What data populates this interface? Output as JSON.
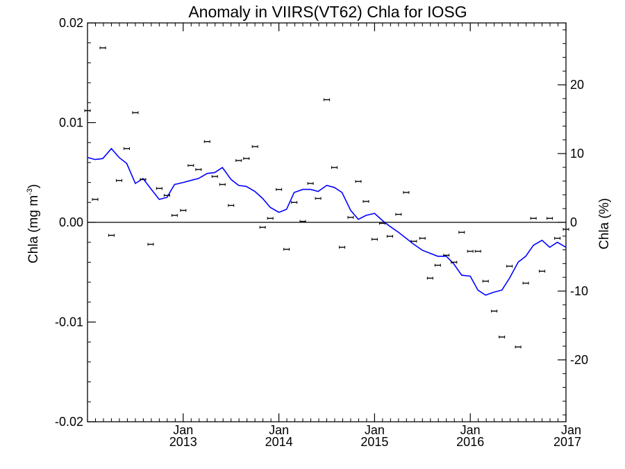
{
  "chart_data": {
    "type": "scatter",
    "title": "Anomaly in VIIRS(VT62) Chla for IOSG",
    "ylabel_left": {
      "base": "Chla (mg m",
      "superscript": "-3",
      "close": ")"
    },
    "ylabel_right": "Chla (%)",
    "xlim": [
      2012.0,
      2017.0
    ],
    "ylim_left": [
      -0.02,
      0.02
    ],
    "ylim_right": [
      -29,
      29
    ],
    "x_ticks": [
      {
        "x": 2013.0,
        "month": "Jan",
        "year": "2013"
      },
      {
        "x": 2014.0,
        "month": "Jan",
        "year": "2014"
      },
      {
        "x": 2015.0,
        "month": "Jan",
        "year": "2015"
      },
      {
        "x": 2016.0,
        "month": "Jan",
        "year": "2016"
      },
      {
        "x": 2017.0,
        "month": "Jan",
        "year": "2017"
      }
    ],
    "y_ticks_left": [
      {
        "value": 0.02,
        "label": "0.02"
      },
      {
        "value": 0.01,
        "label": "0.01"
      },
      {
        "value": 0.0,
        "label": "0.00"
      },
      {
        "value": -0.01,
        "label": "-0.01"
      },
      {
        "value": -0.02,
        "label": "-0.02"
      }
    ],
    "y_ticks_right": [
      {
        "value": 20,
        "label": "20"
      },
      {
        "value": 10,
        "label": "10"
      },
      {
        "value": 0,
        "label": "0"
      },
      {
        "value": -10,
        "label": "-10"
      },
      {
        "value": -20,
        "label": "-20"
      }
    ],
    "zero_line": true,
    "colors": {
      "points": "#000000",
      "line": "#0000ff",
      "axes": "#000000"
    },
    "series": [
      {
        "kind": "points",
        "x": [
          2012.0,
          2012.08,
          2012.16,
          2012.25,
          2012.33,
          2012.41,
          2012.5,
          2012.58,
          2012.66,
          2012.75,
          2012.83,
          2012.91,
          2013.0,
          2013.08,
          2013.16,
          2013.25,
          2013.33,
          2013.41,
          2013.5,
          2013.58,
          2013.66,
          2013.75,
          2013.83,
          2013.91,
          2014.0,
          2014.08,
          2014.16,
          2014.25,
          2014.33,
          2014.41,
          2014.5,
          2014.58,
          2014.66,
          2014.75,
          2014.83,
          2014.91,
          2015.0,
          2015.08,
          2015.16,
          2015.25,
          2015.33,
          2015.41,
          2015.5,
          2015.58,
          2015.66,
          2015.75,
          2015.83,
          2015.91,
          2016.0,
          2016.08,
          2016.16,
          2016.25,
          2016.33,
          2016.41,
          2016.5,
          2016.58,
          2016.66,
          2016.75,
          2016.83,
          2016.91,
          2017.0
        ],
        "y": [
          0.0112,
          0.0023,
          0.0175,
          -0.0013,
          0.0042,
          0.0074,
          0.011,
          0.0043,
          -0.0022,
          0.0034,
          0.0027,
          0.0007,
          0.0012,
          0.0057,
          0.0053,
          0.0081,
          0.0046,
          0.0038,
          0.0017,
          0.0062,
          0.0064,
          0.0076,
          -0.0005,
          0.0004,
          0.0033,
          -0.0027,
          0.002,
          0.0001,
          0.0039,
          0.0024,
          0.0123,
          0.0055,
          -0.0025,
          0.0005,
          0.0041,
          0.0021,
          -0.0017,
          -0.0001,
          -0.0014,
          0.0008,
          0.003,
          -0.0019,
          -0.0016,
          -0.0056,
          -0.0043,
          -0.0033,
          -0.004,
          -0.001,
          -0.0029,
          -0.0029,
          -0.0059,
          -0.0089,
          -0.0115,
          -0.0044,
          -0.0125,
          -0.0061,
          0.0004,
          -0.0049,
          0.0004,
          -0.0016,
          -0.0007
        ]
      },
      {
        "kind": "line",
        "x": [
          2012.0,
          2012.08,
          2012.16,
          2012.25,
          2012.33,
          2012.41,
          2012.5,
          2012.58,
          2012.66,
          2012.75,
          2012.83,
          2012.91,
          2013.0,
          2013.08,
          2013.16,
          2013.25,
          2013.33,
          2013.41,
          2013.5,
          2013.58,
          2013.66,
          2013.75,
          2013.83,
          2013.91,
          2014.0,
          2014.08,
          2014.16,
          2014.25,
          2014.33,
          2014.41,
          2014.5,
          2014.58,
          2014.66,
          2014.75,
          2014.83,
          2014.91,
          2015.0,
          2015.08,
          2015.16,
          2015.25,
          2015.33,
          2015.41,
          2015.5,
          2015.58,
          2015.66,
          2015.75,
          2015.83,
          2015.91,
          2016.0,
          2016.08,
          2016.16,
          2016.25,
          2016.33,
          2016.41,
          2016.5,
          2016.58,
          2016.66,
          2016.75,
          2016.83,
          2016.91,
          2017.0
        ],
        "y": [
          0.0065,
          0.0063,
          0.0064,
          0.0074,
          0.0065,
          0.0059,
          0.0039,
          0.0044,
          0.0034,
          0.0023,
          0.0025,
          0.0038,
          0.004,
          0.0042,
          0.0044,
          0.0049,
          0.005,
          0.0055,
          0.0043,
          0.0037,
          0.0036,
          0.0031,
          0.0024,
          0.0015,
          0.001,
          0.0013,
          0.003,
          0.0033,
          0.0033,
          0.0031,
          0.0037,
          0.0035,
          0.003,
          0.0012,
          0.0003,
          0.0007,
          0.0009,
          0.0002,
          -0.0004,
          -0.001,
          -0.0016,
          -0.0022,
          -0.0028,
          -0.0031,
          -0.0034,
          -0.0034,
          -0.0042,
          -0.0053,
          -0.0054,
          -0.0068,
          -0.0073,
          -0.007,
          -0.0068,
          -0.0056,
          -0.004,
          -0.0034,
          -0.0023,
          -0.0018,
          -0.0025,
          -0.002,
          -0.0025
        ]
      }
    ]
  }
}
